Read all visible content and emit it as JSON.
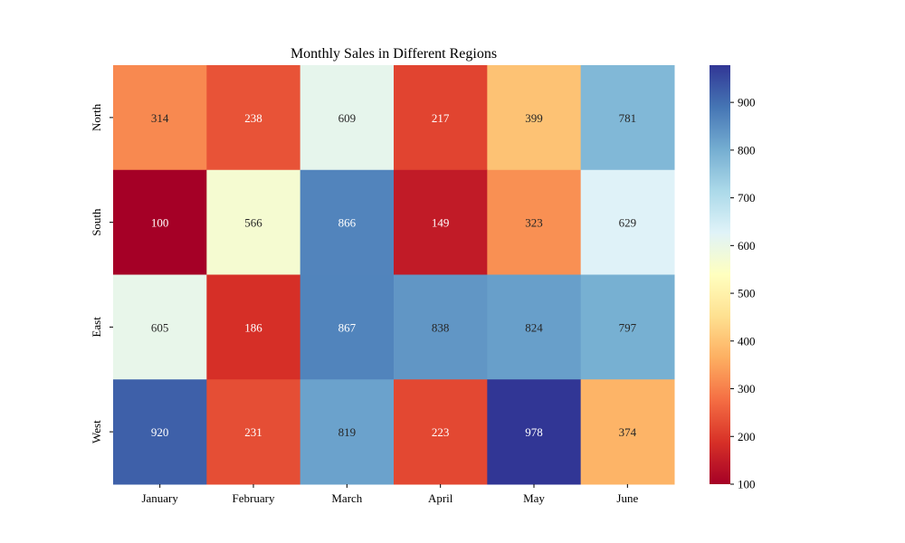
{
  "chart_data": {
    "type": "heatmap",
    "title": "Monthly Sales in Different Regions",
    "x_categories": [
      "January",
      "February",
      "March",
      "April",
      "May",
      "June"
    ],
    "y_categories": [
      "North",
      "South",
      "East",
      "West"
    ],
    "values": [
      [
        314,
        238,
        609,
        217,
        399,
        781
      ],
      [
        100,
        566,
        866,
        149,
        323,
        629
      ],
      [
        605,
        186,
        867,
        838,
        824,
        797
      ],
      [
        920,
        231,
        819,
        223,
        978,
        374
      ]
    ],
    "colormap": "RdYlBu",
    "color_range": [
      100,
      978
    ],
    "colorbar_ticks": [
      100,
      200,
      300,
      400,
      500,
      600,
      700,
      800,
      900
    ],
    "xlabel": "",
    "ylabel": ""
  }
}
